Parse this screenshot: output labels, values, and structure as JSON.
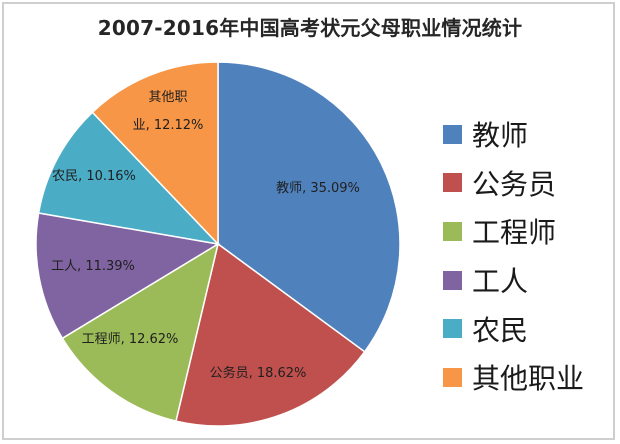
{
  "chart_data": {
    "type": "pie",
    "title": "2007-2016年中国高考状元父母职业情况统计",
    "slices": [
      {
        "label": "教师",
        "value": 35.09,
        "value_label": "35.09%",
        "color": "#4f81bd"
      },
      {
        "label": "公务员",
        "value": 18.62,
        "value_label": "18.62%",
        "color": "#c0504d"
      },
      {
        "label": "工程师",
        "value": 12.62,
        "value_label": "12.62%",
        "color": "#9bbb59"
      },
      {
        "label": "工人",
        "value": 11.39,
        "value_label": "11.39%",
        "color": "#8064a2"
      },
      {
        "label": "农民",
        "value": 10.16,
        "value_label": "10.16%",
        "color": "#4bacc6"
      },
      {
        "label": "其他职业",
        "value": 12.12,
        "value_label": "12.12%",
        "color": "#f79646"
      }
    ],
    "start_angle": "12 o'clock",
    "direction": "clockwise",
    "legend_position": "right"
  }
}
